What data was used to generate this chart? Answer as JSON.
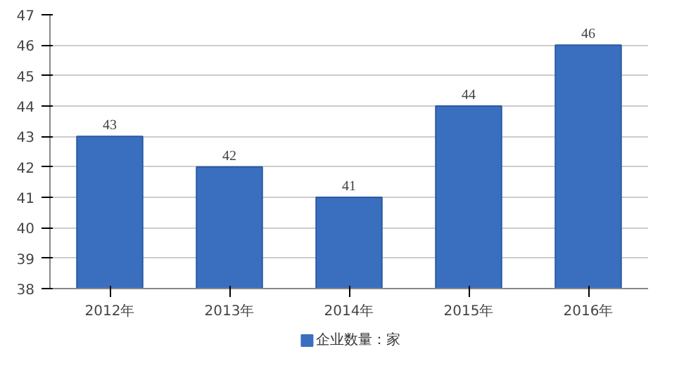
{
  "chart_data": {
    "type": "bar",
    "categories": [
      "2012年",
      "2013年",
      "2014年",
      "2015年",
      "2016年"
    ],
    "series": [
      {
        "name": "企业数量：家",
        "color": "#3a6fc0",
        "values": [
          43,
          42,
          41,
          44,
          46
        ]
      }
    ],
    "ylim": [
      38,
      47
    ],
    "yticks": [
      38,
      39,
      40,
      41,
      42,
      43,
      44,
      45,
      46,
      47
    ],
    "grid": "y",
    "legend": "bottom",
    "data_labels": true
  }
}
